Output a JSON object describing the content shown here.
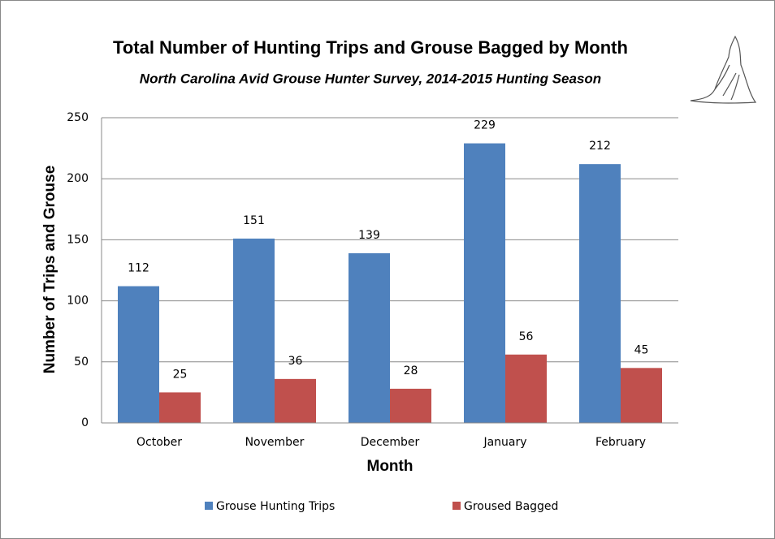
{
  "chart_data": {
    "type": "bar",
    "title": "Total Number of Hunting Trips and Grouse Bagged by Month",
    "subtitle": "North Carolina  Avid Grouse Hunter Survey, 2014-2015 Hunting Season",
    "x_label": "Month",
    "y_label": "Number of Trips and Grouse",
    "categories": [
      "October",
      "November",
      "December",
      "January",
      "February"
    ],
    "series": [
      {
        "name": "Grouse Hunting Trips",
        "color": "#4f81bd",
        "values": [
          112,
          151,
          139,
          229,
          212
        ]
      },
      {
        "name": "Groused Bagged",
        "color": "#c0504d",
        "values": [
          25,
          36,
          28,
          56,
          45
        ]
      }
    ],
    "ylim": [
      0,
      250
    ],
    "yticks": [
      0,
      50,
      100,
      150,
      200,
      250
    ],
    "grid": true,
    "legend": "bottom"
  }
}
